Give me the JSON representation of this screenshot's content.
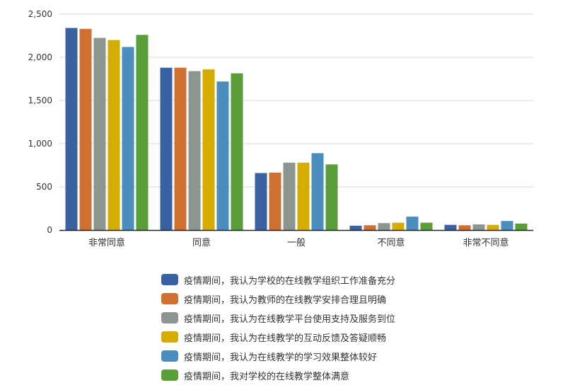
{
  "chart_data": {
    "type": "bar",
    "categories": [
      "非常同意",
      "同意",
      "一般",
      "不同意",
      "非常不同意"
    ],
    "series": [
      {
        "name": "疫情期间，我认为学校的在线教学组织工作准备充分",
        "color": "#3a62a3",
        "values": [
          2340,
          1880,
          660,
          50,
          60
        ]
      },
      {
        "name": "疫情期间，我认为教师的在线教学安排合理且明确",
        "color": "#d07030",
        "values": [
          2330,
          1880,
          665,
          55,
          55
        ]
      },
      {
        "name": "疫情期间，我认为在线教学平台使用支持及服务到位",
        "color": "#8d9590",
        "values": [
          2225,
          1840,
          780,
          80,
          65
        ]
      },
      {
        "name": "疫情期间，我认为在线教学的互动反馈及答疑顺畅",
        "color": "#d4ad00",
        "values": [
          2200,
          1860,
          780,
          85,
          60
        ]
      },
      {
        "name": "疫情期间，我认为在线教学的学习效果整体较好",
        "color": "#4a8ec0",
        "values": [
          2120,
          1720,
          890,
          155,
          105
        ]
      },
      {
        "name": "疫情期间，我对学校的在线教学整体满意",
        "color": "#5a9e3a",
        "values": [
          2260,
          1815,
          760,
          85,
          75
        ]
      }
    ],
    "yticks": [
      "0",
      "500",
      "1,000",
      "1,500",
      "2,000",
      "2,500"
    ],
    "ylim": [
      0,
      2500
    ],
    "grid": true,
    "legend_position": "bottom"
  }
}
